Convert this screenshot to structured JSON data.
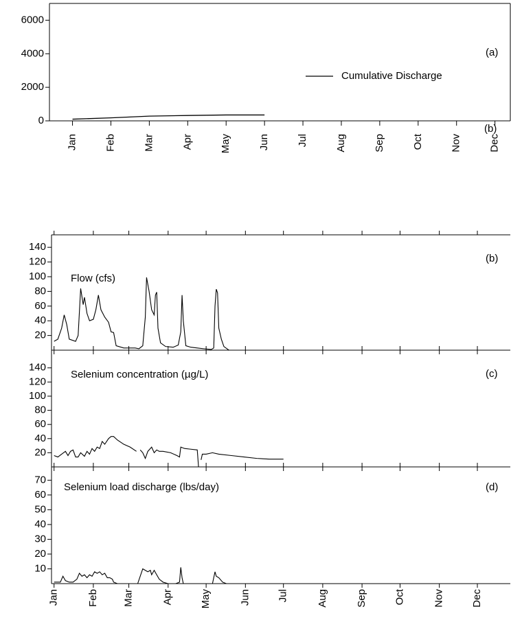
{
  "chart_data": [
    {
      "type": "line",
      "categories": [
        "Jan",
        "Feb",
        "Mar",
        "Apr",
        "May",
        "Jun",
        "Jul",
        "Aug",
        "Sep",
        "Oct",
        "Nov",
        "Dec"
      ],
      "series": [
        {
          "name": "Cumulative Discharge",
          "color": "#000000",
          "values": [
            100,
            180,
            280,
            320,
            350,
            350,
            null,
            null,
            null,
            null,
            null,
            null
          ]
        }
      ],
      "ylim": [
        0,
        7000
      ],
      "yticks": [
        0,
        2000,
        4000,
        6000
      ],
      "annotations": [
        "(a)",
        "(b)"
      ]
    },
    {
      "type": "line",
      "title": "Flow (cfs)",
      "annotation": "(b)",
      "color": "#000000",
      "x": [
        0,
        3,
        6,
        8,
        10,
        12,
        17,
        19,
        21,
        23,
        24,
        26,
        28,
        31,
        33,
        35,
        37,
        40,
        43,
        45,
        47,
        49,
        55,
        60,
        64,
        67,
        70,
        72,
        73,
        75,
        77,
        79,
        80,
        81,
        82,
        84,
        88,
        94,
        98,
        100,
        101,
        102,
        104,
        108,
        113,
        118,
        124,
        126,
        127,
        128,
        129,
        130,
        132,
        134,
        138
      ],
      "values": [
        12,
        15,
        30,
        48,
        35,
        15,
        12,
        20,
        84,
        62,
        72,
        50,
        40,
        42,
        55,
        75,
        55,
        45,
        38,
        25,
        24,
        6,
        3,
        3,
        3,
        2,
        6,
        45,
        99,
        80,
        55,
        48,
        75,
        79,
        30,
        10,
        5,
        4,
        7,
        25,
        75,
        40,
        6,
        4,
        3,
        2,
        1,
        3,
        60,
        83,
        78,
        30,
        15,
        5,
        0
      ],
      "xlim": [
        -2,
        360
      ],
      "xticks": [
        0,
        31,
        59,
        90,
        120,
        151,
        181,
        212,
        243,
        273,
        304,
        334
      ],
      "ylim": [
        0,
        157
      ],
      "yticks": [
        20,
        40,
        60,
        80,
        100,
        120,
        140
      ]
    },
    {
      "type": "line",
      "title": "Selenium concentration (µg/L)",
      "annotation": "(c)",
      "color": "#000000",
      "x": [
        0,
        3,
        6,
        9,
        11,
        13,
        15,
        17,
        19,
        21,
        24,
        26,
        28,
        30,
        32,
        34,
        36,
        38,
        40,
        43,
        45,
        47,
        50,
        55,
        60,
        65,
        66,
        68,
        70,
        72,
        74,
        77,
        79,
        81,
        83,
        86,
        92,
        97,
        99,
        100,
        103,
        108,
        113,
        114,
        115,
        116,
        117,
        120,
        125,
        130,
        140,
        150,
        160,
        170,
        181
      ],
      "values": [
        16,
        14,
        18,
        22,
        16,
        22,
        24,
        14,
        14,
        20,
        15,
        22,
        18,
        26,
        22,
        28,
        26,
        36,
        32,
        40,
        43,
        43,
        38,
        32,
        28,
        22,
        null,
        24,
        20,
        12,
        22,
        28,
        20,
        24,
        22,
        22,
        20,
        16,
        14,
        28,
        26,
        25,
        24,
        0,
        null,
        10,
        18,
        18,
        20,
        18,
        16,
        14,
        12,
        11,
        11
      ],
      "xlim": [
        -2,
        360
      ],
      "xticks": [
        0,
        31,
        59,
        90,
        120,
        151,
        181,
        212,
        243,
        273,
        304,
        334
      ],
      "ylim": [
        0,
        165
      ],
      "yticks": [
        20,
        40,
        60,
        80,
        100,
        120,
        140
      ]
    },
    {
      "type": "line",
      "title": "Selenium load discharge (lbs/day)",
      "annotation": "(d)",
      "color": "#000000",
      "x": [
        0,
        5,
        7,
        9,
        12,
        15,
        18,
        20,
        22,
        24,
        26,
        28,
        30,
        32,
        34,
        36,
        38,
        40,
        42,
        44,
        46,
        47,
        50,
        66,
        68,
        70,
        72,
        74,
        76,
        77,
        79,
        81,
        83,
        86,
        90,
        96,
        99,
        100,
        101,
        102,
        110,
        125,
        127,
        128,
        130,
        133,
        136
      ],
      "values": [
        1,
        1,
        5,
        2,
        1,
        1,
        3,
        7,
        5,
        6,
        4,
        6,
        5,
        8,
        7,
        8,
        6,
        7,
        4,
        4,
        3,
        1,
        0,
        0,
        5,
        10,
        9,
        8,
        9,
        6,
        9,
        6,
        3,
        1,
        0,
        0,
        1,
        11,
        4,
        0,
        null,
        0,
        8,
        5,
        4,
        1,
        0
      ],
      "xlim": [
        -2,
        360
      ],
      "xticks": [
        {
          "value": 0,
          "label": "Jan"
        },
        {
          "value": 31,
          "label": "Feb"
        },
        {
          "value": 59,
          "label": "Mar"
        },
        {
          "value": 90,
          "label": "Apr"
        },
        {
          "value": 120,
          "label": "May"
        },
        {
          "value": 151,
          "label": "Jun"
        },
        {
          "value": 181,
          "label": "Jul"
        },
        {
          "value": 212,
          "label": "Aug"
        },
        {
          "value": 243,
          "label": "Sep"
        },
        {
          "value": 273,
          "label": "Oct"
        },
        {
          "value": 304,
          "label": "Nov"
        },
        {
          "value": 334,
          "label": "Dec"
        }
      ],
      "ylim": [
        0,
        79
      ],
      "yticks": [
        10,
        20,
        30,
        40,
        50,
        60,
        70
      ]
    }
  ]
}
